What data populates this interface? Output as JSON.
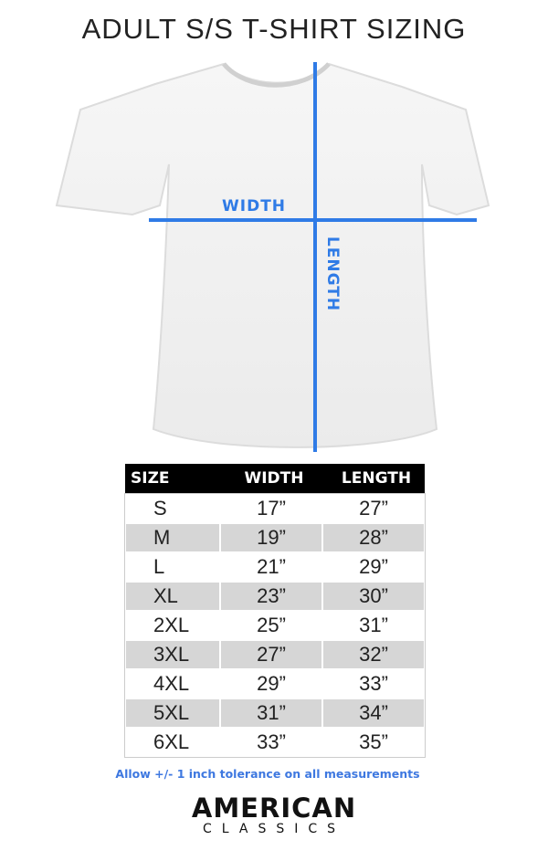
{
  "title": "ADULT S/S T-SHIRT SIZING",
  "diagram": {
    "width_label": "WIDTH",
    "length_label": "LENGTH",
    "line_color": "#2f7be6"
  },
  "table": {
    "headers": [
      "SIZE",
      "WIDTH",
      "LENGTH"
    ],
    "rows": [
      [
        "S",
        "17”",
        "27”"
      ],
      [
        "M",
        "19”",
        "28”"
      ],
      [
        "L",
        "21”",
        "29”"
      ],
      [
        "XL",
        "23”",
        "30”"
      ],
      [
        "2XL",
        "25”",
        "31”"
      ],
      [
        "3XL",
        "27”",
        "32”"
      ],
      [
        "4XL",
        "29”",
        "33”"
      ],
      [
        "5XL",
        "31”",
        "34”"
      ],
      [
        "6XL",
        "33”",
        "35”"
      ]
    ]
  },
  "note": "Allow +/- 1 inch tolerance on all measurements",
  "logo": {
    "line1": "AMERICAN",
    "line2": "CLASSICS"
  }
}
